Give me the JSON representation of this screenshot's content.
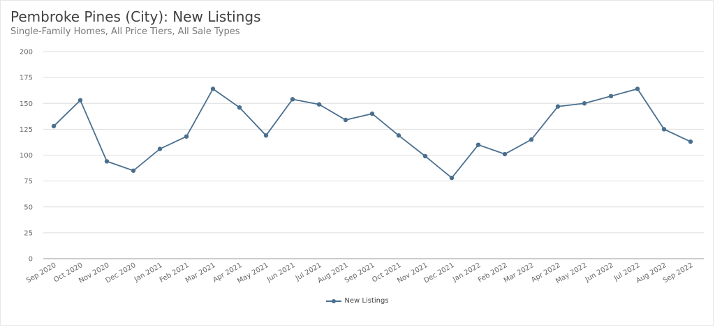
{
  "title": "Pembroke Pines (City): New Listings",
  "subtitle": "Single-Family Homes, All Price Tiers, All Sale Types",
  "colors": {
    "series": "#4a6f8f",
    "grid": "#dedede",
    "axis": "#555555"
  },
  "chart_data": {
    "type": "line",
    "title": "Pembroke Pines (City): New Listings",
    "subtitle": "Single-Family Homes, All Price Tiers, All Sale Types",
    "categories": [
      "Sep 2020",
      "Oct 2020",
      "Nov 2020",
      "Dec 2020",
      "Jan 2021",
      "Feb 2021",
      "Mar 2021",
      "Apr 2021",
      "May 2021",
      "Jun 2021",
      "Jul 2021",
      "Aug 2021",
      "Sep 2021",
      "Oct 2021",
      "Nov 2021",
      "Dec 2021",
      "Jan 2022",
      "Feb 2022",
      "Mar 2022",
      "Apr 2022",
      "May 2022",
      "Jun 2022",
      "Jul 2022",
      "Aug 2022",
      "Sep 2022"
    ],
    "series": [
      {
        "name": "New Listings",
        "values": [
          128,
          153,
          94,
          85,
          106,
          118,
          164,
          146,
          119,
          154,
          149,
          134,
          140,
          119,
          99,
          78,
          110,
          101,
          115,
          147,
          150,
          157,
          164,
          125,
          113
        ]
      }
    ],
    "yticks": [
      0,
      25,
      50,
      75,
      100,
      125,
      150,
      175,
      200
    ],
    "ylim": [
      0,
      200
    ],
    "grid": true,
    "legend": "bottom-center",
    "xlabel": "",
    "ylabel": ""
  }
}
